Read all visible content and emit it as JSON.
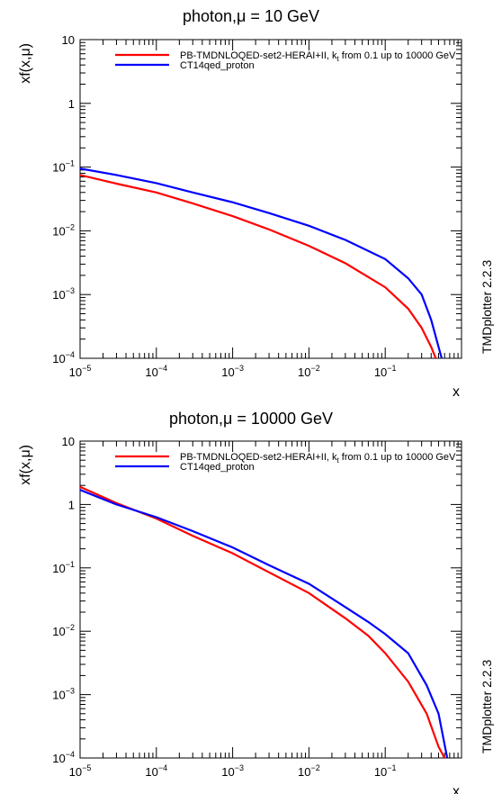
{
  "chart_data": [
    {
      "type": "line",
      "title": "photon,μ = 10 GeV",
      "xlabel": "x",
      "ylabel": "xf(x,μ)",
      "side_label": "TMDplotter 2.2.3",
      "xscale": "log",
      "yscale": "log",
      "xlim": [
        1e-05,
        1
      ],
      "ylim": [
        0.0001,
        10
      ],
      "x_ticks": [
        {
          "base": "10",
          "exp": "−5"
        },
        {
          "base": "10",
          "exp": "−4"
        },
        {
          "base": "10",
          "exp": "−3"
        },
        {
          "base": "10",
          "exp": "−2"
        },
        {
          "base": "10",
          "exp": "−1"
        }
      ],
      "y_ticks": [
        {
          "base": "10",
          "exp": ""
        },
        {
          "base": "1",
          "exp": ""
        },
        {
          "base": "10",
          "exp": "−1"
        },
        {
          "base": "10",
          "exp": "−2"
        },
        {
          "base": "10",
          "exp": "−3"
        },
        {
          "base": "10",
          "exp": "−4"
        }
      ],
      "legend_position": "top",
      "series": [
        {
          "name": "PB-TMDNLOQED-set2-HERAI+II, k_t from 0.1 up to 10000 GeV",
          "color": "#ff0000",
          "x": [
            1e-05,
            3e-05,
            0.0001,
            0.0003,
            0.001,
            0.003,
            0.01,
            0.03,
            0.1,
            0.2,
            0.3,
            0.4,
            0.46
          ],
          "y": [
            0.075,
            0.055,
            0.04,
            0.027,
            0.017,
            0.0105,
            0.0058,
            0.0031,
            0.0013,
            0.0006,
            0.0003,
            0.00015,
            0.0001
          ]
        },
        {
          "name": "CT14qed_proton",
          "color": "#0000ff",
          "x": [
            1e-05,
            3e-05,
            0.0001,
            0.0003,
            0.001,
            0.003,
            0.01,
            0.03,
            0.1,
            0.2,
            0.3,
            0.4,
            0.5,
            0.55
          ],
          "y": [
            0.095,
            0.075,
            0.056,
            0.04,
            0.028,
            0.019,
            0.012,
            0.0072,
            0.0036,
            0.0018,
            0.001,
            0.0004,
            0.00015,
            0.0001
          ]
        }
      ]
    },
    {
      "type": "line",
      "title": "photon,μ = 10000 GeV",
      "xlabel": "x",
      "ylabel": "xf(x,μ)",
      "side_label": "TMDplotter 2.2.3",
      "xscale": "log",
      "yscale": "log",
      "xlim": [
        1e-05,
        1
      ],
      "ylim": [
        0.0001,
        10
      ],
      "x_ticks": [
        {
          "base": "10",
          "exp": "−5"
        },
        {
          "base": "10",
          "exp": "−4"
        },
        {
          "base": "10",
          "exp": "−3"
        },
        {
          "base": "10",
          "exp": "−2"
        },
        {
          "base": "10",
          "exp": "−1"
        }
      ],
      "y_ticks": [
        {
          "base": "10",
          "exp": ""
        },
        {
          "base": "1",
          "exp": ""
        },
        {
          "base": "10",
          "exp": "−1"
        },
        {
          "base": "10",
          "exp": "−2"
        },
        {
          "base": "10",
          "exp": "−3"
        },
        {
          "base": "10",
          "exp": "−4"
        }
      ],
      "legend_position": "top",
      "series": [
        {
          "name": "PB-TMDNLOQED-set2-HERAI+II, k_t from 0.1 up to 10000 GeV",
          "color": "#ff0000",
          "x": [
            1e-05,
            3e-05,
            0.0001,
            0.0003,
            0.001,
            0.003,
            0.01,
            0.03,
            0.06,
            0.1,
            0.2,
            0.35,
            0.5,
            0.6
          ],
          "y": [
            1.9,
            1.05,
            0.6,
            0.32,
            0.17,
            0.085,
            0.04,
            0.016,
            0.0085,
            0.0045,
            0.0016,
            0.0005,
            0.00015,
            0.0001
          ]
        },
        {
          "name": "CT14qed_proton",
          "color": "#0000ff",
          "x": [
            1e-05,
            3e-05,
            0.0001,
            0.0003,
            0.001,
            0.003,
            0.01,
            0.03,
            0.06,
            0.1,
            0.2,
            0.35,
            0.5,
            0.65
          ],
          "y": [
            1.7,
            1.0,
            0.63,
            0.38,
            0.21,
            0.11,
            0.056,
            0.024,
            0.014,
            0.009,
            0.0045,
            0.0014,
            0.0005,
            0.0001
          ]
        }
      ]
    }
  ]
}
